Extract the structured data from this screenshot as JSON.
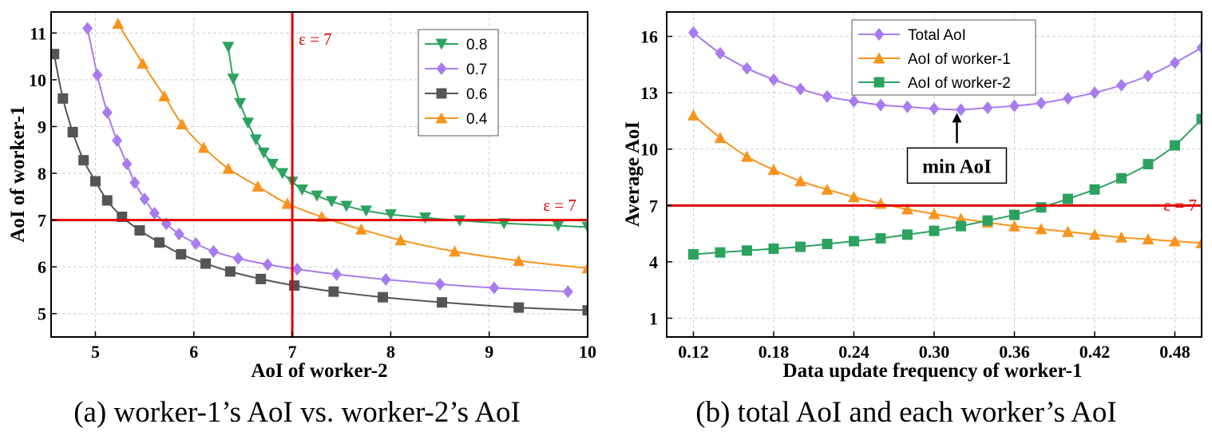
{
  "captions": {
    "a": "(a) worker-1’s AoI vs. worker-2’s AoI",
    "b": "(b) total AoI and each worker’s AoI"
  },
  "chart_data": [
    {
      "type": "line",
      "xlabel": "AoI of worker-2",
      "ylabel": "AoI of  worker-1",
      "xlim": [
        4.55,
        10.0
      ],
      "ylim": [
        4.5,
        11.45
      ],
      "xticks": [
        5,
        6,
        7,
        8,
        9,
        10
      ],
      "yticks": [
        5,
        6,
        7,
        8,
        9,
        10,
        11
      ],
      "grid": true,
      "legend": "top-right",
      "series": [
        {
          "name": "0.8",
          "color": "#2ca25f",
          "marker": "triangle-down",
          "x": [
            6.35,
            6.4,
            6.47,
            6.55,
            6.63,
            6.71,
            6.8,
            6.9,
            7.0,
            7.1,
            7.25,
            7.4,
            7.55,
            7.75,
            8.0,
            8.35,
            8.7,
            9.15,
            9.7,
            10.0
          ],
          "y": [
            10.7,
            10.02,
            9.5,
            9.08,
            8.72,
            8.44,
            8.2,
            8.0,
            7.82,
            7.65,
            7.52,
            7.4,
            7.3,
            7.2,
            7.12,
            7.05,
            6.99,
            6.93,
            6.88,
            6.85
          ]
        },
        {
          "name": "0.7",
          "color": "#a87bf0",
          "marker": "diamond",
          "x": [
            4.92,
            5.02,
            5.12,
            5.22,
            5.32,
            5.4,
            5.5,
            5.6,
            5.72,
            5.85,
            6.02,
            6.2,
            6.45,
            6.75,
            7.05,
            7.45,
            7.95,
            8.5,
            9.05,
            9.8
          ],
          "y": [
            11.1,
            10.1,
            9.3,
            8.7,
            8.2,
            7.8,
            7.45,
            7.15,
            6.92,
            6.7,
            6.5,
            6.33,
            6.18,
            6.05,
            5.95,
            5.84,
            5.73,
            5.63,
            5.55,
            5.47
          ]
        },
        {
          "name": "0.6",
          "color": "#555555",
          "marker": "square",
          "x": [
            4.58,
            4.67,
            4.77,
            4.88,
            5.0,
            5.12,
            5.27,
            5.45,
            5.65,
            5.87,
            6.12,
            6.37,
            6.68,
            7.02,
            7.42,
            7.92,
            8.52,
            9.3,
            10.0
          ],
          "y": [
            10.55,
            9.6,
            8.88,
            8.28,
            7.83,
            7.42,
            7.07,
            6.78,
            6.52,
            6.27,
            6.07,
            5.9,
            5.74,
            5.6,
            5.47,
            5.35,
            5.24,
            5.13,
            5.07
          ]
        },
        {
          "name": "0.4",
          "color": "#f7941d",
          "marker": "triangle-up",
          "x": [
            5.23,
            5.48,
            5.7,
            5.88,
            6.1,
            6.35,
            6.65,
            6.95,
            7.3,
            7.7,
            8.1,
            8.65,
            9.3,
            10.0
          ],
          "y": [
            11.2,
            10.35,
            9.65,
            9.05,
            8.55,
            8.1,
            7.72,
            7.35,
            7.07,
            6.8,
            6.57,
            6.33,
            6.13,
            5.97
          ]
        }
      ],
      "reference_lines": [
        {
          "axis": "x",
          "value": 7,
          "label": "ε = 7",
          "color": "#e00000"
        },
        {
          "axis": "y",
          "value": 7,
          "label": "ε = 7",
          "color": "#e00000"
        }
      ]
    },
    {
      "type": "line",
      "xlabel": "Data update frequency of worker-1",
      "ylabel": "Average AoI",
      "xlim": [
        0.1,
        0.5
      ],
      "ylim": [
        0.0,
        17.3
      ],
      "xticks": [
        0.12,
        0.18,
        0.24,
        0.3,
        0.36,
        0.42,
        0.48
      ],
      "xtick_labels": [
        "0.12",
        "0.18",
        "0.24",
        "0.30",
        "0.36",
        "0.42",
        "0.48"
      ],
      "yticks": [
        1,
        4,
        7,
        10,
        13,
        16
      ],
      "grid": true,
      "legend": "top-left",
      "series": [
        {
          "name": "Total AoI",
          "color": "#a87bf0",
          "marker": "diamond",
          "x": [
            0.12,
            0.14,
            0.16,
            0.18,
            0.2,
            0.22,
            0.24,
            0.26,
            0.28,
            0.3,
            0.32,
            0.34,
            0.36,
            0.38,
            0.4,
            0.42,
            0.44,
            0.46,
            0.48,
            0.5
          ],
          "y": [
            16.2,
            15.1,
            14.3,
            13.7,
            13.2,
            12.8,
            12.55,
            12.35,
            12.25,
            12.15,
            12.1,
            12.2,
            12.3,
            12.45,
            12.7,
            13.0,
            13.4,
            13.9,
            14.6,
            15.4
          ]
        },
        {
          "name": "AoI of worker-1",
          "color": "#f7941d",
          "marker": "triangle-up",
          "x": [
            0.12,
            0.14,
            0.16,
            0.18,
            0.2,
            0.22,
            0.24,
            0.26,
            0.28,
            0.3,
            0.32,
            0.34,
            0.36,
            0.38,
            0.4,
            0.42,
            0.44,
            0.46,
            0.48,
            0.5
          ],
          "y": [
            11.8,
            10.6,
            9.6,
            8.9,
            8.3,
            7.85,
            7.45,
            7.1,
            6.8,
            6.55,
            6.3,
            6.1,
            5.9,
            5.75,
            5.6,
            5.45,
            5.3,
            5.2,
            5.1,
            5.0
          ]
        },
        {
          "name": "AoI of worker-2",
          "color": "#2ca25f",
          "marker": "square",
          "x": [
            0.12,
            0.14,
            0.16,
            0.18,
            0.2,
            0.22,
            0.24,
            0.26,
            0.28,
            0.3,
            0.32,
            0.34,
            0.36,
            0.38,
            0.4,
            0.42,
            0.44,
            0.46,
            0.48,
            0.5
          ],
          "y": [
            4.4,
            4.5,
            4.6,
            4.7,
            4.8,
            4.95,
            5.1,
            5.25,
            5.45,
            5.65,
            5.9,
            6.2,
            6.5,
            6.9,
            7.35,
            7.85,
            8.45,
            9.2,
            10.2,
            11.6
          ]
        }
      ],
      "reference_lines": [
        {
          "axis": "y",
          "value": 7,
          "label": "ε = 7",
          "color": "#e00000"
        }
      ],
      "annotations": [
        {
          "text": "min AoI",
          "x": 0.32,
          "y": 12.1
        }
      ]
    }
  ]
}
